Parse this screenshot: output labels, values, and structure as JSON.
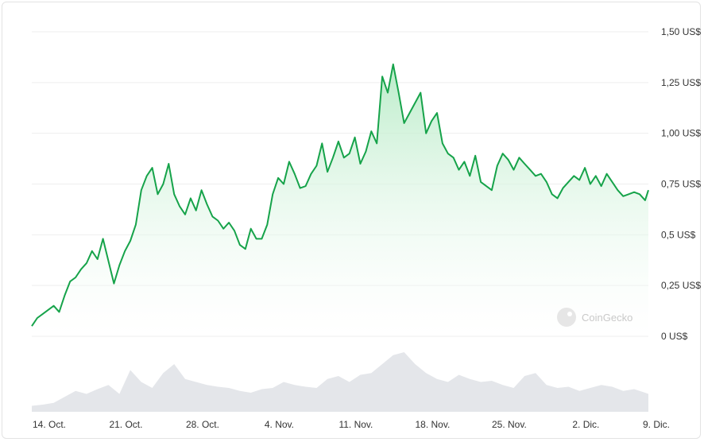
{
  "watermark": "CoinGecko",
  "watermark_icon": "coingecko-logo-icon",
  "colors": {
    "line": "#16a34a",
    "area_top": "#b7ebc6",
    "volume": "#e4e6ea",
    "grid": "#eeeeee"
  },
  "chart_data": {
    "type": "area",
    "title": "",
    "xlabel": "",
    "ylabel": "",
    "ylim": [
      0,
      1.5
    ],
    "yticks": [
      {
        "value": 1.5,
        "label": "1,50 US$"
      },
      {
        "value": 1.25,
        "label": "1,25 US$"
      },
      {
        "value": 1.0,
        "label": "1,00 US$"
      },
      {
        "value": 0.75,
        "label": "0,75 US$"
      },
      {
        "value": 0.5,
        "label": "0,5 US$"
      },
      {
        "value": 0.25,
        "label": "0,25 US$"
      },
      {
        "value": 0,
        "label": "0 US$"
      }
    ],
    "xticks": [
      {
        "day": 0,
        "label": "14. Oct."
      },
      {
        "day": 7,
        "label": "21. Oct."
      },
      {
        "day": 14,
        "label": "28. Oct."
      },
      {
        "day": 21,
        "label": "4. Nov."
      },
      {
        "day": 28,
        "label": "11. Nov."
      },
      {
        "day": 35,
        "label": "18. Nov."
      },
      {
        "day": 42,
        "label": "25. Nov."
      },
      {
        "day": 49,
        "label": "2. Dic."
      },
      {
        "day": 56,
        "label": "9. Dic."
      }
    ],
    "grid": true,
    "price": {
      "x": [
        0,
        0.5,
        1,
        1.5,
        2,
        2.5,
        3,
        3.5,
        4,
        4.5,
        5,
        5.5,
        6,
        6.5,
        7,
        7.5,
        8,
        8.5,
        9,
        9.5,
        10,
        10.5,
        11,
        11.5,
        12,
        12.5,
        13,
        13.5,
        14,
        14.5,
        15,
        15.5,
        16,
        16.5,
        17,
        17.5,
        18,
        18.5,
        19,
        19.5,
        20,
        20.5,
        21,
        21.5,
        22,
        22.5,
        23,
        23.5,
        24,
        24.5,
        25,
        25.5,
        26,
        26.5,
        27,
        27.5,
        28,
        28.5,
        29,
        29.5,
        30,
        30.5,
        31,
        31.5,
        32,
        32.5,
        33,
        33.5,
        34,
        34.5,
        35,
        35.5,
        36,
        36.5,
        37,
        37.5,
        38,
        38.5,
        39,
        39.5,
        40,
        40.5,
        41,
        41.5,
        42,
        42.5,
        43,
        43.5,
        44,
        44.5,
        45,
        45.5,
        46,
        46.5,
        47,
        47.5,
        48,
        48.5,
        49,
        49.5,
        50,
        50.5,
        51,
        51.5,
        52,
        52.5,
        53,
        53.5,
        54,
        54.5,
        55,
        55.5,
        56,
        56.3
      ],
      "y": [
        0.05,
        0.09,
        0.11,
        0.13,
        0.15,
        0.12,
        0.2,
        0.27,
        0.29,
        0.33,
        0.36,
        0.42,
        0.38,
        0.48,
        0.37,
        0.26,
        0.35,
        0.42,
        0.47,
        0.55,
        0.72,
        0.79,
        0.83,
        0.7,
        0.75,
        0.85,
        0.7,
        0.64,
        0.6,
        0.68,
        0.62,
        0.72,
        0.65,
        0.59,
        0.57,
        0.53,
        0.56,
        0.52,
        0.45,
        0.43,
        0.53,
        0.48,
        0.48,
        0.55,
        0.7,
        0.78,
        0.75,
        0.86,
        0.8,
        0.73,
        0.74,
        0.8,
        0.84,
        0.95,
        0.81,
        0.88,
        0.96,
        0.88,
        0.9,
        0.98,
        0.85,
        0.91,
        1.01,
        0.95,
        1.28,
        1.2,
        1.34,
        1.2,
        1.05,
        1.1,
        1.15,
        1.2,
        1.0,
        1.06,
        1.1,
        0.95,
        0.9,
        0.88,
        0.82,
        0.86,
        0.79,
        0.89,
        0.76,
        0.74,
        0.72,
        0.84,
        0.9,
        0.87,
        0.82,
        0.88,
        0.85,
        0.82,
        0.79,
        0.8,
        0.76,
        0.7,
        0.68,
        0.73,
        0.76,
        0.79,
        0.77,
        0.83,
        0.75,
        0.79,
        0.74,
        0.8,
        0.76,
        0.72,
        0.69,
        0.7,
        0.71,
        0.7,
        0.67,
        0.72
      ]
    },
    "volume": {
      "x": [
        0,
        1,
        2,
        3,
        4,
        5,
        6,
        7,
        8,
        9,
        10,
        11,
        12,
        13,
        14,
        15,
        16,
        17,
        18,
        19,
        20,
        21,
        22,
        23,
        24,
        25,
        26,
        27,
        28,
        29,
        30,
        31,
        32,
        33,
        34,
        35,
        36,
        37,
        38,
        39,
        40,
        41,
        42,
        43,
        44,
        45,
        46,
        47,
        48,
        49,
        50,
        51,
        52,
        53,
        54,
        55,
        56,
        56.3
      ],
      "y": [
        0.1,
        0.12,
        0.15,
        0.25,
        0.35,
        0.3,
        0.38,
        0.45,
        0.3,
        0.7,
        0.5,
        0.4,
        0.65,
        0.8,
        0.55,
        0.5,
        0.45,
        0.42,
        0.4,
        0.35,
        0.32,
        0.38,
        0.4,
        0.5,
        0.45,
        0.42,
        0.4,
        0.55,
        0.6,
        0.5,
        0.62,
        0.65,
        0.8,
        0.95,
        1.0,
        0.8,
        0.65,
        0.55,
        0.5,
        0.62,
        0.55,
        0.5,
        0.52,
        0.45,
        0.4,
        0.6,
        0.65,
        0.45,
        0.4,
        0.42,
        0.35,
        0.4,
        0.45,
        0.42,
        0.35,
        0.38,
        0.32,
        0.3
      ]
    }
  }
}
